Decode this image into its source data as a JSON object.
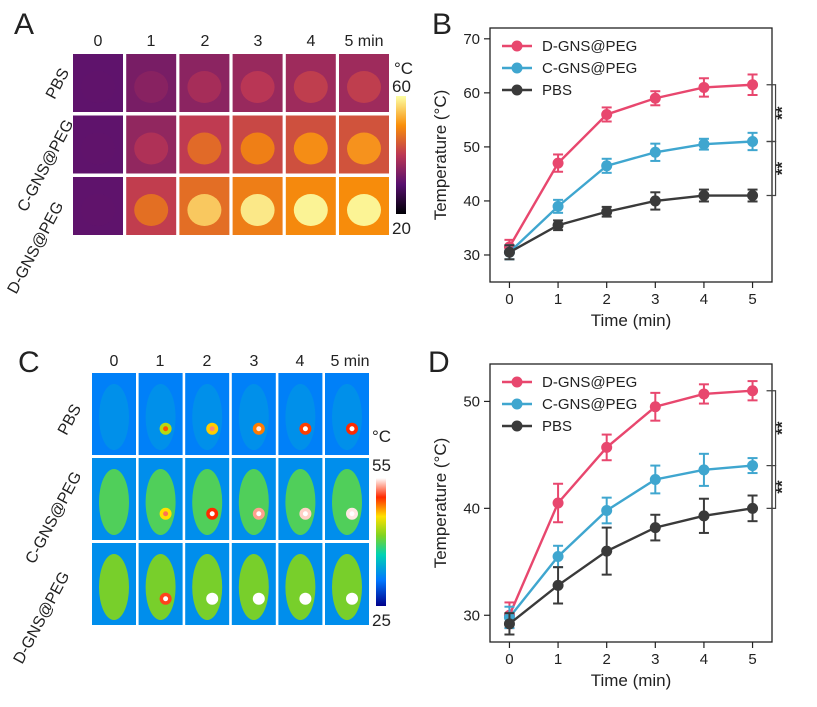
{
  "panels": {
    "A": {
      "letter": "A",
      "time_headers": [
        "0",
        "1",
        "2",
        "3",
        "4",
        "5 min"
      ],
      "row_labels": [
        "PBS",
        "C-GNS@PEG",
        "D-GNS@PEG"
      ],
      "colorbar": {
        "unit": "°C",
        "max": "60",
        "min": "20"
      },
      "colormap": "inferno",
      "cells_celsius": [
        [
          31,
          35,
          38,
          40,
          41,
          41
        ],
        [
          31,
          39,
          46.5,
          49,
          50.5,
          51
        ],
        [
          31,
          47,
          56,
          59,
          61,
          61.5
        ]
      ]
    },
    "B": {
      "letter": "B"
    },
    "C": {
      "letter": "C",
      "time_headers": [
        "0",
        "1",
        "2",
        "3",
        "4",
        "5 min"
      ],
      "row_labels": [
        "PBS",
        "C-GNS@PEG",
        "D-GNS@PEG"
      ],
      "colorbar": {
        "unit": "°C",
        "max": "55",
        "min": "25"
      },
      "colormap": "rainbow",
      "cells_celsius": [
        [
          29.5,
          33,
          36,
          38,
          39.5,
          40
        ],
        [
          30,
          35.5,
          40,
          42.5,
          43.5,
          44
        ],
        [
          29.5,
          40.5,
          45.5,
          49.5,
          50.5,
          51
        ]
      ]
    },
    "D": {
      "letter": "D"
    }
  },
  "colors": {
    "d_gns": "#e8476e",
    "c_gns": "#3fa6cf",
    "pbs": "#3a3a3a"
  },
  "chart_data": [
    {
      "panel": "B",
      "type": "line",
      "x": [
        0,
        1,
        2,
        3,
        4,
        5
      ],
      "xlabel": "Time (min)",
      "ylabel": "Temperature (°C)",
      "xlim": [
        -0.4,
        5.4
      ],
      "ylim": [
        25,
        72
      ],
      "xticks": [
        0,
        1,
        2,
        3,
        4,
        5
      ],
      "yticks": [
        30,
        40,
        50,
        60,
        70
      ],
      "legend": "top-left",
      "series": [
        {
          "name": "D-GNS@PEG",
          "color": "#e8476e",
          "values": [
            31.5,
            47,
            56,
            59,
            61,
            61.5
          ],
          "errors": [
            1.3,
            1.6,
            1.3,
            1.3,
            1.7,
            1.9
          ]
        },
        {
          "name": "C-GNS@PEG",
          "color": "#3fa6cf",
          "values": [
            30.5,
            39,
            46.5,
            49,
            50.5,
            51
          ],
          "errors": [
            1.3,
            1.2,
            1.3,
            1.6,
            1.0,
            1.6
          ]
        },
        {
          "name": "PBS",
          "color": "#3a3a3a",
          "values": [
            30.5,
            35.5,
            38,
            40,
            41,
            41
          ],
          "errors": [
            1.3,
            0.9,
            0.9,
            1.6,
            1.1,
            1.1
          ]
        }
      ],
      "significance": [
        "**",
        "**"
      ]
    },
    {
      "panel": "D",
      "type": "line",
      "x": [
        0,
        1,
        2,
        3,
        4,
        5
      ],
      "xlabel": "Time (min)",
      "ylabel": "Temperature (°C)",
      "xlim": [
        -0.4,
        5.4
      ],
      "ylim": [
        27.5,
        53.5
      ],
      "xticks": [
        0,
        1,
        2,
        3,
        4,
        5
      ],
      "yticks": [
        30,
        40,
        50
      ],
      "legend": "top-left",
      "series": [
        {
          "name": "D-GNS@PEG",
          "color": "#e8476e",
          "values": [
            30,
            40.5,
            45.7,
            49.5,
            50.7,
            51
          ],
          "errors": [
            1.2,
            1.8,
            1.2,
            1.3,
            0.9,
            0.9
          ]
        },
        {
          "name": "C-GNS@PEG",
          "color": "#3fa6cf",
          "values": [
            29.8,
            35.5,
            39.8,
            42.7,
            43.6,
            44
          ],
          "errors": [
            1.0,
            1.0,
            1.2,
            1.3,
            1.5,
            0.7
          ]
        },
        {
          "name": "PBS",
          "color": "#3a3a3a",
          "values": [
            29.2,
            32.8,
            36,
            38.2,
            39.3,
            40
          ],
          "errors": [
            1.0,
            1.7,
            2.2,
            1.2,
            1.6,
            1.2
          ]
        }
      ],
      "significance": [
        "**",
        "**"
      ]
    }
  ]
}
